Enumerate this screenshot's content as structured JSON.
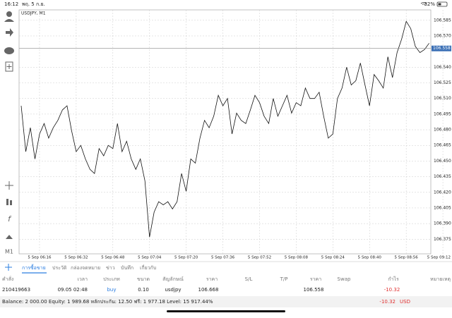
{
  "status_bar": {
    "time": "16:12",
    "date": "พฤ. 5 ก.ย.",
    "battery": "32%"
  },
  "toolbar": {
    "timeframe": "M1"
  },
  "chart_data": {
    "type": "line",
    "title": "USDJPY, M1",
    "color": "#111111",
    "grid": true,
    "categories": [
      null,
      null,
      null,
      null,
      "5 Sep 06:16",
      null,
      null,
      null,
      null,
      null,
      null,
      null,
      "5 Sep 06:32",
      null,
      null,
      null,
      null,
      null,
      null,
      null,
      "5 Sep 06:48",
      null,
      null,
      null,
      null,
      null,
      null,
      null,
      "5 Sep 07:04",
      null,
      null,
      null,
      null,
      null,
      null,
      null,
      "5 Sep 07:20",
      null,
      null,
      null,
      null,
      null,
      null,
      null,
      "5 Sep 07:36",
      null,
      null,
      null,
      null,
      null,
      null,
      null,
      "5 Sep 07:52",
      null,
      null,
      null,
      null,
      null,
      null,
      null,
      "5 Sep 08:08",
      null,
      null,
      null,
      null,
      null,
      null,
      null,
      "5 Sep 08:24",
      null,
      null,
      null,
      null,
      null,
      null,
      null,
      "5 Sep 08:40",
      null,
      null,
      null,
      null,
      null,
      null,
      null,
      "5 Sep 08:56",
      null,
      null,
      null,
      null,
      null,
      null,
      null,
      "5 Sep 09:12"
    ],
    "values": [
      106.503,
      106.459,
      106.482,
      106.452,
      106.476,
      106.486,
      106.472,
      106.482,
      106.489,
      106.499,
      106.503,
      106.479,
      106.459,
      106.465,
      106.452,
      106.442,
      106.438,
      106.462,
      106.455,
      106.465,
      106.462,
      106.486,
      106.459,
      106.469,
      106.452,
      106.442,
      106.452,
      106.431,
      106.377,
      106.401,
      106.411,
      106.408,
      106.411,
      106.404,
      106.411,
      106.438,
      106.421,
      106.452,
      106.448,
      106.472,
      106.489,
      106.482,
      106.493,
      106.513,
      106.503,
      106.51,
      106.476,
      106.496,
      106.489,
      106.486,
      106.499,
      106.513,
      106.506,
      106.493,
      106.486,
      106.51,
      106.493,
      106.503,
      106.513,
      106.496,
      106.506,
      106.503,
      106.52,
      106.51,
      106.51,
      106.516,
      106.493,
      106.472,
      106.476,
      106.51,
      106.52,
      106.54,
      106.523,
      106.527,
      106.544,
      106.523,
      106.503,
      106.533,
      106.527,
      106.52,
      106.55,
      106.53,
      106.554,
      106.567,
      106.584,
      106.577,
      106.56,
      106.554,
      106.557,
      106.563,
      null,
      null,
      null
    ],
    "current_price": 106.558,
    "ylim": [
      106.361,
      106.595
    ],
    "yticks": [
      106.585,
      {
        "value": 106.57,
        "label": "106.570"
      },
      {
        "value": 106.54,
        "label": "106.540"
      },
      106.525,
      {
        "value": 106.51,
        "label": "106.510"
      },
      106.495,
      {
        "value": 106.48,
        "label": "106.480"
      },
      106.465,
      {
        "value": 106.45,
        "label": "106.450"
      },
      106.435,
      {
        "value": 106.42,
        "label": "106.420"
      },
      106.405,
      {
        "value": 106.39,
        "label": "106.390"
      },
      106.375
    ]
  },
  "tabs": [
    "การซื้อขาย",
    "ประวัติ",
    "กล่องจดหมาย",
    "ข่าว",
    "บันทึก",
    "เกี่ยวกับ"
  ],
  "table": {
    "header": [
      "คำสั่ง",
      "เวลา",
      "ประเภท",
      "ขนาด",
      "สัญลักษณ์",
      "ราคา",
      "S/L",
      "T/P",
      "ราคา",
      "Swap",
      "กำไร",
      "หมายเหตุ"
    ],
    "rows": [
      {
        "order": "210419663",
        "time": "09.05 02:48",
        "type": "buy",
        "size": "0.10",
        "symbol": "usdjpy",
        "open_price": "106.668",
        "price": "106.558",
        "profit": "-10.32"
      }
    ]
  },
  "summary": {
    "text": "Balance: 2 000.00 Equity: 1 989.68 หลักประกัน: 12.50 ฟรี: 1 977.18 Level: 15 917.44%",
    "profit": "-10.32",
    "currency": "USD"
  }
}
